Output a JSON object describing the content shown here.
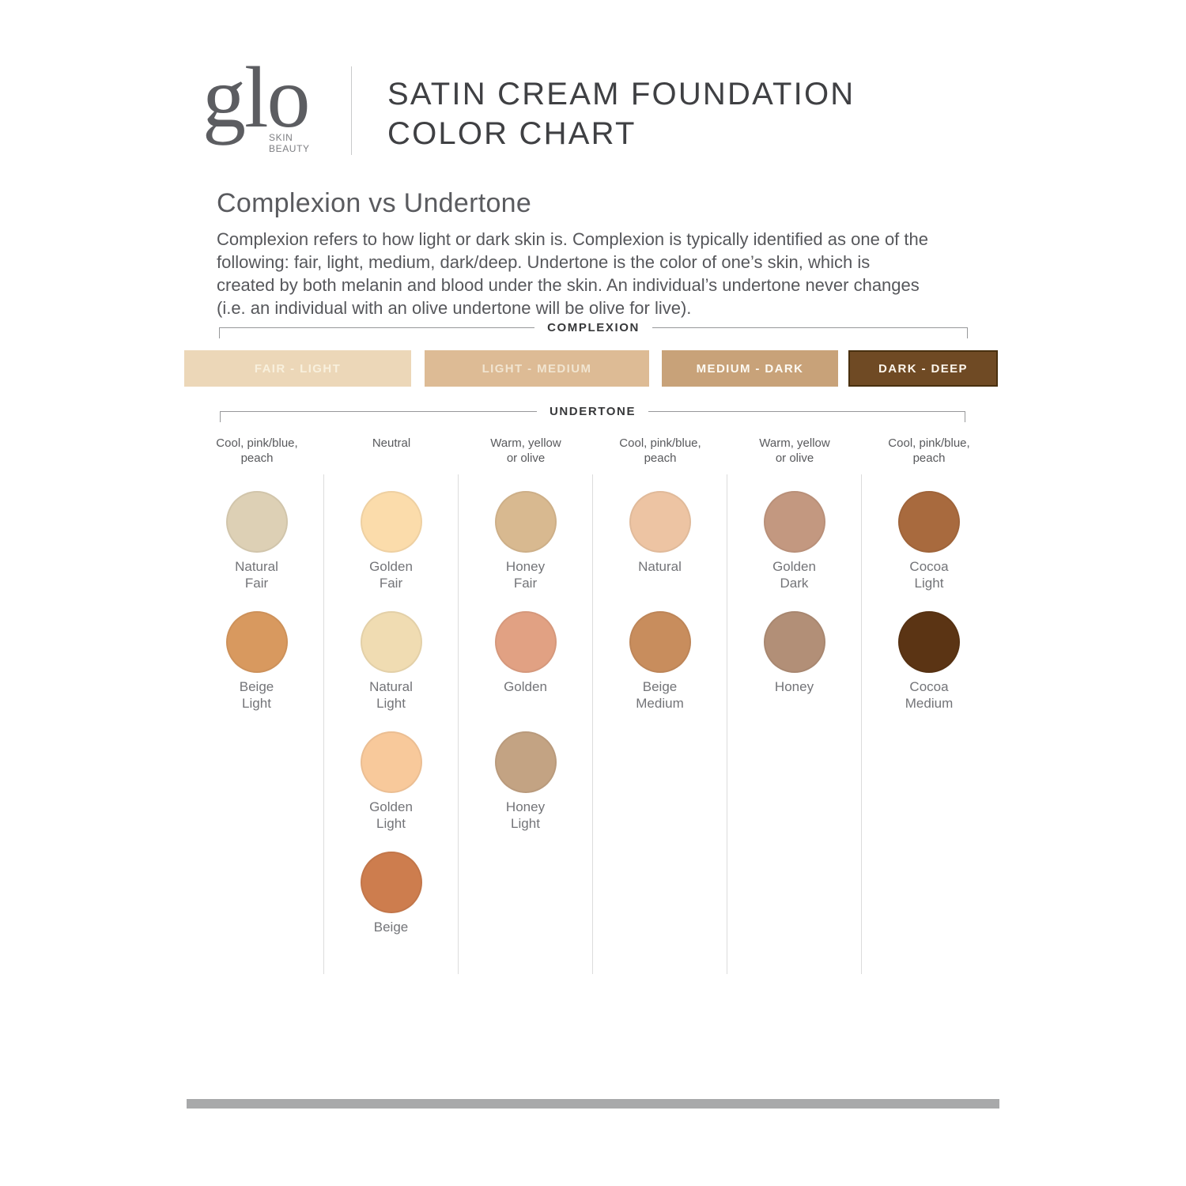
{
  "brand": {
    "logo_text": "glo",
    "logo_sub_line1": "SKIN",
    "logo_sub_line2": "BEAUTY"
  },
  "header": {
    "title_line1": "SATIN CREAM FOUNDATION",
    "title_line2": "COLOR CHART"
  },
  "intro": {
    "heading": "Complexion vs Undertone",
    "body_lines": [
      "Complexion refers to how light or dark skin is. Complexion is typically identified as one of the",
      "following: fair, light, medium, dark/deep. Undertone is the color of one’s skin, which is",
      "created by both melanin and blood under the skin. An individual’s undertone never changes",
      "(i.e. an individual with an olive undertone will be olive for live)."
    ]
  },
  "complexion": {
    "label": "COMPLEXION",
    "bars": [
      {
        "label": "FAIR - LIGHT",
        "color": "#ecd7b8",
        "text_color": "#f8f0dd",
        "border_color": ""
      },
      {
        "label": "LIGHT - MEDIUM",
        "color": "#ddbb95",
        "text_color": "#f1e5d1",
        "border_color": ""
      },
      {
        "label": "MEDIUM - DARK",
        "color": "#c8a279",
        "text_color": "#fdfaf3",
        "border_color": ""
      },
      {
        "label": "DARK - DEEP",
        "color": "#6f4a24",
        "text_color": "#fdf6ec",
        "border_color": "#49300f"
      }
    ]
  },
  "undertone": {
    "label": "UNDERTONE",
    "columns": [
      {
        "tone_lines": [
          "Cool, pink/blue,",
          "peach"
        ],
        "shades": [
          {
            "name": "Natural Fair",
            "lines": [
              "Natural",
              "Fair"
            ],
            "color": "#ddd0b5"
          },
          {
            "name": "Beige Light",
            "lines": [
              "Beige",
              "Light"
            ],
            "color": "#d8995f"
          }
        ]
      },
      {
        "tone_lines": [
          "Neutral",
          ""
        ],
        "shades": [
          {
            "name": "Golden Fair",
            "lines": [
              "Golden",
              "Fair"
            ],
            "color": "#fbdcab"
          },
          {
            "name": "Natural Light",
            "lines": [
              "Natural",
              "Light"
            ],
            "color": "#f0dcb2"
          },
          {
            "name": "Golden Light",
            "lines": [
              "Golden",
              "Light"
            ],
            "color": "#f8c99b"
          },
          {
            "name": "Beige",
            "lines": [
              "Beige",
              ""
            ],
            "color": "#cd7d4e"
          }
        ]
      },
      {
        "tone_lines": [
          "Warm, yellow",
          "or olive"
        ],
        "shades": [
          {
            "name": "Honey Fair",
            "lines": [
              "Honey",
              "Fair"
            ],
            "color": "#d8b990"
          },
          {
            "name": "Golden",
            "lines": [
              "Golden",
              ""
            ],
            "color": "#e1a183"
          },
          {
            "name": "Honey Light",
            "lines": [
              "Honey",
              "Light"
            ],
            "color": "#c3a383"
          }
        ]
      },
      {
        "tone_lines": [
          "Cool, pink/blue,",
          "peach"
        ],
        "shades": [
          {
            "name": "Natural",
            "lines": [
              "Natural",
              ""
            ],
            "color": "#edc4a3"
          },
          {
            "name": "Beige Medium",
            "lines": [
              "Beige",
              "Medium"
            ],
            "color": "#c88d5d"
          }
        ]
      },
      {
        "tone_lines": [
          "Warm, yellow",
          "or olive"
        ],
        "shades": [
          {
            "name": "Golden Dark",
            "lines": [
              "Golden",
              "Dark"
            ],
            "color": "#c39880"
          },
          {
            "name": "Honey",
            "lines": [
              "Honey",
              ""
            ],
            "color": "#b28f77"
          }
        ]
      },
      {
        "tone_lines": [
          "Cool, pink/blue,",
          "peach"
        ],
        "shades": [
          {
            "name": "Cocoa Light",
            "lines": [
              "Cocoa",
              "Light"
            ],
            "color": "#a86a3e"
          },
          {
            "name": "Cocoa Medium",
            "lines": [
              "Cocoa",
              "Medium"
            ],
            "color": "#5b3414"
          }
        ]
      }
    ]
  }
}
